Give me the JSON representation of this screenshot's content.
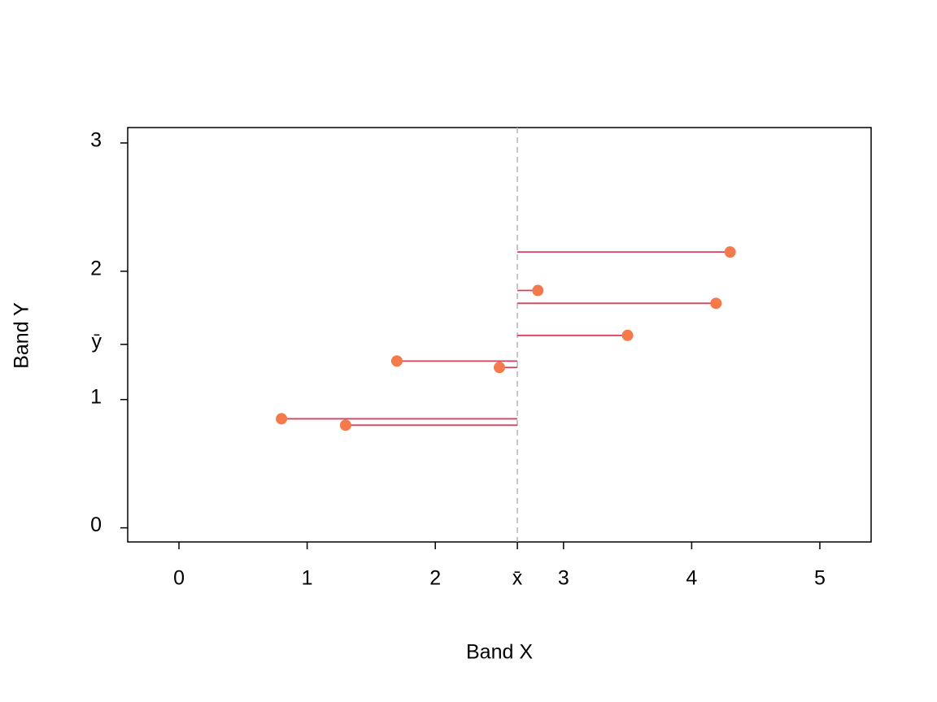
{
  "chart_data": {
    "type": "scatter",
    "x_label": "Band X",
    "y_label": "Band Y",
    "x": [
      4.3,
      2.8,
      4.19,
      3.5,
      1.7,
      2.5,
      0.8,
      1.3
    ],
    "values": [
      2.15,
      1.85,
      1.75,
      1.5,
      1.3,
      1.25,
      0.85,
      0.8
    ],
    "color": "#f47a4b",
    "segment_color": "#d2435b",
    "mean_line_color": "#b3b3b3",
    "xlim": [
      -0.4,
      5.4
    ],
    "ylim": [
      -0.11,
      3.12
    ],
    "xticks": [
      0,
      1,
      2,
      {
        "value": 2.64,
        "label": "x̄"
      },
      3,
      4,
      5
    ],
    "yticks": [
      0,
      1,
      {
        "value": 1.43,
        "label": "ȳ"
      },
      2,
      3
    ]
  }
}
